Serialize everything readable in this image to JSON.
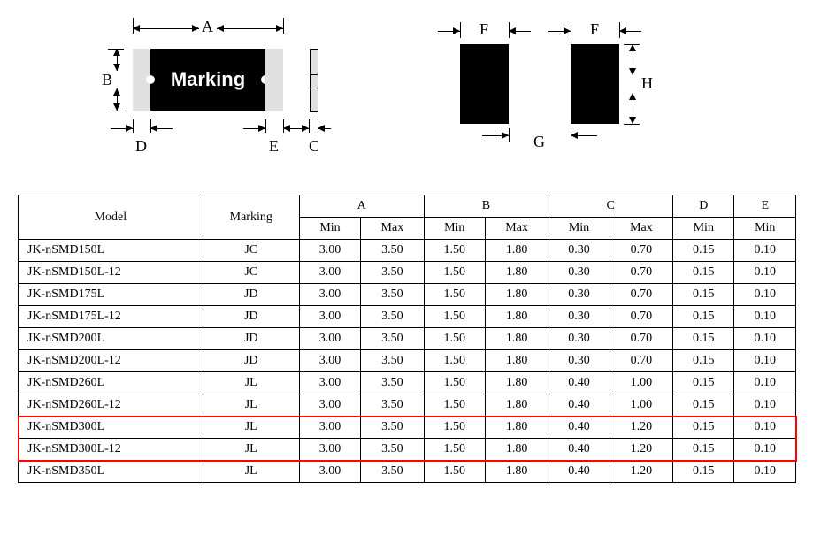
{
  "diagram": {
    "marking_label": "Marking",
    "labels": {
      "A": "A",
      "B": "B",
      "C": "C",
      "D": "D",
      "E": "E",
      "F": "F",
      "G": "G",
      "H": "H"
    }
  },
  "table": {
    "headers": {
      "model": "Model",
      "marking": "Marking",
      "A": "A",
      "B": "B",
      "C": "C",
      "D": "D",
      "E": "E",
      "min": "Min",
      "max": "Max"
    },
    "rows": [
      {
        "model": "JK-nSMD150L",
        "marking": "JC",
        "a_min": "3.00",
        "a_max": "3.50",
        "b_min": "1.50",
        "b_max": "1.80",
        "c_min": "0.30",
        "c_max": "0.70",
        "d_min": "0.15",
        "e_min": "0.10"
      },
      {
        "model": "JK-nSMD150L-12",
        "marking": "JC",
        "a_min": "3.00",
        "a_max": "3.50",
        "b_min": "1.50",
        "b_max": "1.80",
        "c_min": "0.30",
        "c_max": "0.70",
        "d_min": "0.15",
        "e_min": "0.10"
      },
      {
        "model": "JK-nSMD175L",
        "marking": "JD",
        "a_min": "3.00",
        "a_max": "3.50",
        "b_min": "1.50",
        "b_max": "1.80",
        "c_min": "0.30",
        "c_max": "0.70",
        "d_min": "0.15",
        "e_min": "0.10"
      },
      {
        "model": "JK-nSMD175L-12",
        "marking": "JD",
        "a_min": "3.00",
        "a_max": "3.50",
        "b_min": "1.50",
        "b_max": "1.80",
        "c_min": "0.30",
        "c_max": "0.70",
        "d_min": "0.15",
        "e_min": "0.10"
      },
      {
        "model": "JK-nSMD200L",
        "marking": "JD",
        "a_min": "3.00",
        "a_max": "3.50",
        "b_min": "1.50",
        "b_max": "1.80",
        "c_min": "0.30",
        "c_max": "0.70",
        "d_min": "0.15",
        "e_min": "0.10"
      },
      {
        "model": "JK-nSMD200L-12",
        "marking": "JD",
        "a_min": "3.00",
        "a_max": "3.50",
        "b_min": "1.50",
        "b_max": "1.80",
        "c_min": "0.30",
        "c_max": "0.70",
        "d_min": "0.15",
        "e_min": "0.10"
      },
      {
        "model": "JK-nSMD260L",
        "marking": "JL",
        "a_min": "3.00",
        "a_max": "3.50",
        "b_min": "1.50",
        "b_max": "1.80",
        "c_min": "0.40",
        "c_max": "1.00",
        "d_min": "0.15",
        "e_min": "0.10"
      },
      {
        "model": "JK-nSMD260L-12",
        "marking": "JL",
        "a_min": "3.00",
        "a_max": "3.50",
        "b_min": "1.50",
        "b_max": "1.80",
        "c_min": "0.40",
        "c_max": "1.00",
        "d_min": "0.15",
        "e_min": "0.10"
      },
      {
        "model": "JK-nSMD300L",
        "marking": "JL",
        "a_min": "3.00",
        "a_max": "3.50",
        "b_min": "1.50",
        "b_max": "1.80",
        "c_min": "0.40",
        "c_max": "1.20",
        "d_min": "0.15",
        "e_min": "0.10"
      },
      {
        "model": "JK-nSMD300L-12",
        "marking": "JL",
        "a_min": "3.00",
        "a_max": "3.50",
        "b_min": "1.50",
        "b_max": "1.80",
        "c_min": "0.40",
        "c_max": "1.20",
        "d_min": "0.15",
        "e_min": "0.10"
      },
      {
        "model": "JK-nSMD350L",
        "marking": "JL",
        "a_min": "3.00",
        "a_max": "3.50",
        "b_min": "1.50",
        "b_max": "1.80",
        "c_min": "0.40",
        "c_max": "1.20",
        "d_min": "0.15",
        "e_min": "0.10"
      }
    ],
    "highlight_rows": [
      8,
      9
    ],
    "styling": {
      "border_color": "#000000",
      "highlight_color": "#ff0000",
      "font_family": "Times New Roman",
      "font_size_pt": 11
    }
  }
}
